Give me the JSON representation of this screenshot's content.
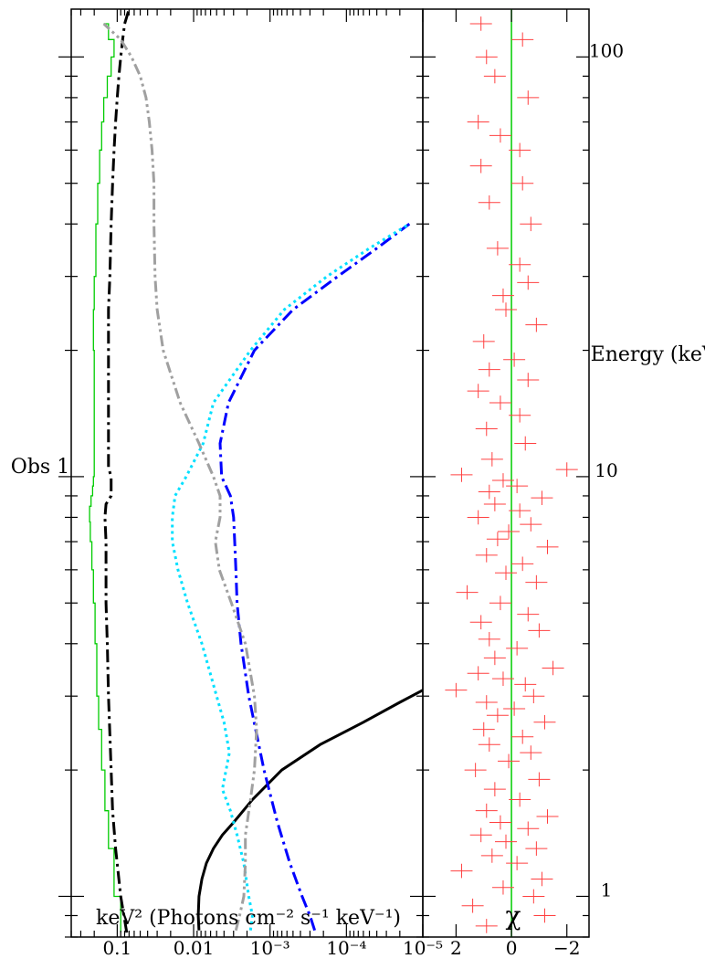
{
  "chart_data": [
    {
      "type": "line",
      "title": "Obs 1",
      "xlabel": "Energy (keV)",
      "ylabel": "keV² (Photons cm⁻² s⁻¹ keV⁻¹)",
      "x_scale": "log",
      "y_scale": "log",
      "xlim": [
        0.8,
        130
      ],
      "ylim": [
        1e-05,
        0.4
      ],
      "x_ticks": [
        1,
        10,
        100
      ],
      "y_ticks": [
        {
          "value": 0.1,
          "label": "0.1"
        },
        {
          "value": 0.01,
          "label": "0.01"
        },
        {
          "value": 0.001,
          "label": "10⁻³"
        },
        {
          "value": 0.0001,
          "label": "10⁻⁴"
        },
        {
          "value": 1e-05,
          "label": "10⁻⁵"
        }
      ],
      "series": [
        {
          "color": "#00cc00",
          "style": "step",
          "x": [
            0.82,
            1,
            1.3,
            1.6,
            2,
            2.5,
            3,
            4,
            5,
            6,
            7,
            7.8,
            8.5,
            9,
            9.5,
            10,
            10.5,
            20,
            25,
            30,
            40,
            50,
            60,
            70,
            80,
            90,
            100,
            110,
            120
          ],
          "y": [
            0.09,
            0.11,
            0.13,
            0.145,
            0.16,
            0.175,
            0.185,
            0.195,
            0.205,
            0.215,
            0.225,
            0.23,
            0.22,
            0.21,
            0.205,
            0.2,
            0.2,
            0.205,
            0.2,
            0.19,
            0.18,
            0.17,
            0.16,
            0.15,
            0.135,
            0.12,
            0.11,
            0.13,
            0.15
          ]
        },
        {
          "color": "#000000",
          "style": "dash-dot",
          "x": [
            0.82,
            1,
            1.3,
            1.6,
            2,
            3,
            4,
            5,
            6,
            7,
            8,
            8.6,
            9,
            10,
            10.5,
            20,
            25,
            30,
            40,
            50,
            60,
            70,
            80,
            90,
            100,
            110,
            120,
            130
          ],
          "y": [
            0.075,
            0.09,
            0.105,
            0.115,
            0.12,
            0.13,
            0.135,
            0.14,
            0.14,
            0.14,
            0.145,
            0.14,
            0.12,
            0.12,
            0.13,
            0.13,
            0.13,
            0.125,
            0.12,
            0.115,
            0.11,
            0.105,
            0.1,
            0.095,
            0.09,
            0.085,
            0.08,
            0.07
          ]
        },
        {
          "color": "#000000",
          "style": "solid",
          "x": [
            0.83,
            0.9,
            1,
            1.1,
            1.2,
            1.3,
            1.4,
            1.5,
            1.7,
            2,
            2.3,
            2.6,
            2.9,
            3.1
          ],
          "y": [
            0.0085,
            0.0087,
            0.0085,
            0.0078,
            0.0068,
            0.0055,
            0.0042,
            0.003,
            0.0017,
            0.0007,
            0.00022,
            6e-05,
            2e-05,
            1e-05
          ]
        },
        {
          "color": "#0000ff",
          "style": "dash-dot",
          "x": [
            0.83,
            0.9,
            1,
            1.2,
            1.5,
            2,
            3,
            4,
            5,
            6,
            7,
            8,
            9,
            10,
            12,
            15,
            20,
            25,
            30,
            35,
            40
          ],
          "y": [
            0.00026,
            0.0003,
            0.00038,
            0.00055,
            0.0008,
            0.0012,
            0.0019,
            0.0024,
            0.0027,
            0.0028,
            0.0029,
            0.003,
            0.0033,
            0.0043,
            0.0045,
            0.0035,
            0.0016,
            0.0005,
            0.00013,
            4e-05,
            1.5e-05
          ]
        },
        {
          "color": "#00e0ff",
          "style": "dotted",
          "x": [
            0.83,
            0.9,
            1,
            1.2,
            1.4,
            1.6,
            1.8,
            2.2,
            2.6,
            3,
            4,
            5,
            6,
            7,
            8,
            9,
            10,
            12,
            15,
            20,
            25,
            30,
            35,
            40
          ],
          "y": [
            0.0018,
            0.0017,
            0.0019,
            0.0022,
            0.0027,
            0.0033,
            0.0042,
            0.0034,
            0.004,
            0.005,
            0.0078,
            0.012,
            0.016,
            0.019,
            0.019,
            0.0175,
            0.0125,
            0.0075,
            0.0055,
            0.0018,
            0.00065,
            0.00018,
            5e-05,
            1.5e-05
          ]
        },
        {
          "color": "#a0a0a0",
          "style": "dash-dot-dot",
          "x": [
            0.83,
            0.9,
            1,
            1.2,
            1.4,
            1.7,
            2,
            2.5,
            3,
            4,
            5,
            6,
            7,
            8,
            9,
            10,
            12,
            15,
            20,
            25,
            30,
            40,
            50,
            60,
            70,
            80,
            90,
            100,
            110,
            120
          ],
          "y": [
            0.0028,
            0.0025,
            0.0022,
            0.0021,
            0.0021,
            0.0018,
            0.0016,
            0.0015,
            0.0016,
            0.0021,
            0.0032,
            0.0046,
            0.0052,
            0.0045,
            0.0045,
            0.0055,
            0.0085,
            0.015,
            0.025,
            0.03,
            0.032,
            0.033,
            0.033,
            0.035,
            0.038,
            0.042,
            0.05,
            0.065,
            0.09,
            0.15
          ]
        }
      ]
    },
    {
      "type": "scatter",
      "xlabel": "Energy (keV)",
      "ylabel": "χ",
      "x_scale": "log",
      "xlim": [
        0.8,
        130
      ],
      "ylim": [
        -2.8,
        3.2
      ],
      "y_ticks": [
        2,
        0,
        -2
      ],
      "zero_line_color": "#00cc00",
      "series": [
        {
          "color": "#ff4040",
          "error_bars": true,
          "x": [
            0.85,
            0.9,
            0.95,
            1,
            1.05,
            1.1,
            1.15,
            1.2,
            1.25,
            1.3,
            1.35,
            1.4,
            1.45,
            1.5,
            1.55,
            1.6,
            1.7,
            1.8,
            1.9,
            2,
            2.1,
            2.2,
            2.3,
            2.4,
            2.5,
            2.6,
            2.7,
            2.8,
            2.9,
            3,
            3.1,
            3.2,
            3.3,
            3.4,
            3.5,
            3.7,
            3.9,
            4.1,
            4.3,
            4.5,
            4.7,
            5,
            5.3,
            5.6,
            5.9,
            6.2,
            6.5,
            6.8,
            7.1,
            7.4,
            7.7,
            8,
            8.3,
            8.6,
            8.9,
            9.2,
            9.5,
            9.8,
            10.1,
            10.4,
            11,
            12,
            13,
            14,
            15,
            16,
            17,
            18,
            19,
            21,
            23,
            25,
            27,
            29,
            32,
            35,
            40,
            45,
            50,
            55,
            60,
            65,
            70,
            80,
            90,
            100,
            110,
            120
          ],
          "y": [
            0.9,
            -1.2,
            1.4,
            -0.8,
            0.3,
            -1.1,
            1.8,
            -0.2,
            0.7,
            -0.9,
            0.2,
            1.1,
            -0.6,
            0.4,
            -1.3,
            0.9,
            -0.3,
            0.6,
            -1.0,
            1.3,
            0.1,
            -0.7,
            0.8,
            -0.4,
            1.0,
            -1.2,
            0.5,
            -0.1,
            0.9,
            -0.8,
            2.0,
            -0.5,
            0.3,
            1.2,
            -1.5,
            0.6,
            -0.2,
            0.8,
            -1.0,
            1.1,
            -0.6,
            0.4,
            1.6,
            -0.9,
            0.2,
            -0.4,
            0.9,
            -1.3,
            0.5,
            0.1,
            -0.7,
            1.2,
            -0.3,
            0.6,
            -1.1,
            0.8,
            -0.2,
            0.3,
            1.8,
            -2.0,
            0.7,
            -0.5,
            0.9,
            -0.3,
            0.4,
            1.2,
            -0.6,
            0.8,
            -0.1,
            1.0,
            -0.9,
            0.2,
            0.3,
            -0.6,
            -0.3,
            0.5,
            -0.7,
            0.8,
            -0.4,
            1.1,
            -0.3,
            0.4,
            1.2,
            -0.6,
            0.6,
            0.9,
            -0.4,
            1.1
          ]
        }
      ]
    }
  ]
}
